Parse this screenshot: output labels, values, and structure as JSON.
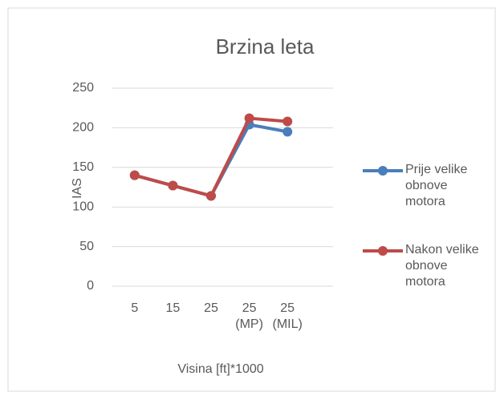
{
  "chart_data": {
    "type": "line",
    "title": "Brzina leta",
    "x_label": "Visina [ft]*1000",
    "y_label": "IAS",
    "categories": [
      "5",
      "15",
      "25",
      "25 (MP)",
      "25 (MIL)"
    ],
    "series": [
      {
        "name": "Prije velike obnove motora",
        "color": "#4a7ebb",
        "values": [
          140,
          127,
          114,
          204,
          195
        ]
      },
      {
        "name": "Nakon velike obnove motora",
        "color": "#be4b48",
        "values": [
          140,
          127,
          114,
          212,
          208
        ]
      }
    ],
    "ylim": [
      0,
      250
    ],
    "yticks": [
      0,
      50,
      100,
      150,
      200,
      250
    ],
    "grid": true,
    "legend": "right"
  }
}
